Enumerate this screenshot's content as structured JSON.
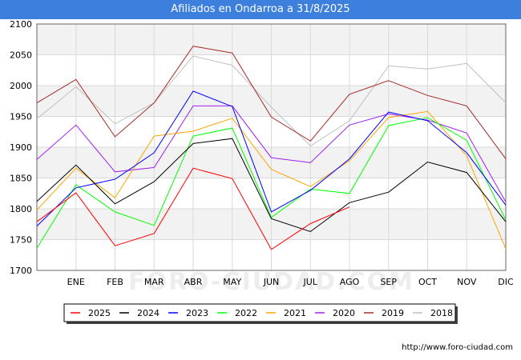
{
  "title": "Afiliados en Ondarroa a 31/8/2025",
  "footer_url": "http://www.foro-ciudad.com",
  "watermark": "FORO-CIUDAD.COM",
  "chart_data": {
    "type": "line",
    "title": "Afiliados en Ondarroa a 31/8/2025",
    "xlabel": "",
    "ylabel": "",
    "ylim": [
      1700,
      2100
    ],
    "yticks": [
      1700,
      1750,
      1800,
      1850,
      1900,
      1950,
      2000,
      2050,
      2100
    ],
    "categories": [
      "",
      "ENE",
      "FEB",
      "MAR",
      "ABR",
      "MAY",
      "JUN",
      "JUL",
      "AGO",
      "SEP",
      "OCT",
      "NOV",
      "DIC"
    ],
    "grid": true,
    "legend_position": "bottom",
    "series": [
      {
        "name": "2025",
        "color": "#ff0000",
        "values": [
          1779,
          1826,
          1740,
          1760,
          1866,
          1849,
          1734,
          1776,
          1803,
          null,
          null,
          null,
          null
        ]
      },
      {
        "name": "2024",
        "color": "#000000",
        "values": [
          1812,
          1871,
          1808,
          1844,
          1906,
          1914,
          1784,
          1763,
          1810,
          1827,
          1876,
          1859,
          1779
        ]
      },
      {
        "name": "2023",
        "color": "#0000ff",
        "values": [
          1772,
          1834,
          1848,
          1891,
          1991,
          1966,
          1795,
          1830,
          1881,
          1957,
          1943,
          1891,
          1806
        ]
      },
      {
        "name": "2022",
        "color": "#00ff00",
        "values": [
          1736,
          1839,
          1795,
          1773,
          1918,
          1931,
          1786,
          1832,
          1825,
          1935,
          1948,
          1911,
          1782
        ]
      },
      {
        "name": "2021",
        "color": "#ffa500",
        "values": [
          1798,
          1866,
          1818,
          1918,
          1926,
          1947,
          1864,
          1836,
          1878,
          1948,
          1958,
          1886,
          1735
        ]
      },
      {
        "name": "2020",
        "color": "#a020f0",
        "values": [
          1880,
          1936,
          1860,
          1867,
          1967,
          1967,
          1883,
          1875,
          1936,
          1954,
          1944,
          1923,
          1811
        ]
      },
      {
        "name": "2019",
        "color": "#a52a2a",
        "values": [
          1972,
          2010,
          1917,
          1972,
          2064,
          2053,
          1949,
          1910,
          1986,
          2008,
          1984,
          1967,
          1881
        ]
      },
      {
        "name": "2018",
        "color": "#c0c0c0",
        "values": [
          1946,
          1998,
          1938,
          1972,
          2048,
          2033,
          1965,
          1902,
          1943,
          2032,
          2027,
          2036,
          1972
        ]
      }
    ]
  }
}
